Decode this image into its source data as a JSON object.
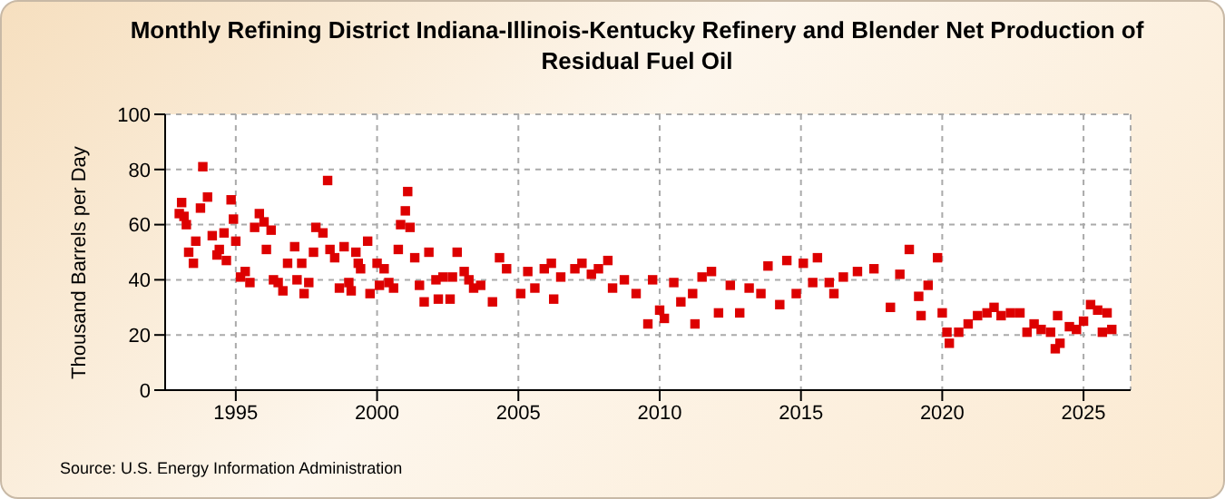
{
  "chart_data": {
    "type": "scatter",
    "title": "Monthly Refining District Indiana-Illinois-Kentucky Refinery and Blender Net Production of Residual Fuel Oil",
    "ylabel": "Thousand Barrels per Day",
    "annotations": [
      "Source: U.S. Energy Information Administration"
    ],
    "x": [
      "1993-01",
      "1993-02",
      "1993-03",
      "1993-04",
      "1993-05",
      "1993-07",
      "1993-08",
      "1993-10",
      "1993-11",
      "1994-01",
      "1994-03",
      "1994-05",
      "1994-06",
      "1994-08",
      "1994-09",
      "1994-11",
      "1994-12",
      "1995-01",
      "1995-03",
      "1995-05",
      "1995-07",
      "1995-09",
      "1995-11",
      "1996-01",
      "1996-02",
      "1996-04",
      "1996-05",
      "1996-07",
      "1996-09",
      "1996-11",
      "1997-02",
      "1997-03",
      "1997-05",
      "1997-06",
      "1997-08",
      "1997-10",
      "1997-11",
      "1998-02",
      "1998-04",
      "1998-05",
      "1998-07",
      "1998-09",
      "1998-11",
      "1999-01",
      "1999-02",
      "1999-04",
      "1999-05",
      "1999-06",
      "1999-09",
      "1999-10",
      "2000-01",
      "2000-02",
      "2000-04",
      "2000-06",
      "2000-08",
      "2000-10",
      "2000-11",
      "2001-01",
      "2001-02",
      "2001-03",
      "2001-05",
      "2001-07",
      "2001-09",
      "2001-11",
      "2002-02",
      "2002-03",
      "2002-05",
      "2002-08",
      "2002-09",
      "2002-11",
      "2003-02",
      "2003-04",
      "2003-06",
      "2003-09",
      "2004-02",
      "2004-05",
      "2004-08",
      "2005-02",
      "2005-05",
      "2005-08",
      "2005-12",
      "2006-03",
      "2006-04",
      "2006-07",
      "2007-01",
      "2007-04",
      "2007-08",
      "2007-11",
      "2008-03",
      "2008-05",
      "2008-10",
      "2009-03",
      "2009-08",
      "2009-10",
      "2010-01",
      "2010-03",
      "2010-07",
      "2010-10",
      "2011-03",
      "2011-04",
      "2011-07",
      "2011-11",
      "2012-02",
      "2012-07",
      "2012-11",
      "2013-03",
      "2013-08",
      "2013-11",
      "2014-04",
      "2014-07",
      "2014-11",
      "2015-02",
      "2015-06",
      "2015-08",
      "2016-01",
      "2016-03",
      "2016-07",
      "2017-01",
      "2017-08",
      "2018-03",
      "2018-07",
      "2018-11",
      "2019-03",
      "2019-04",
      "2019-07",
      "2019-11",
      "2020-01",
      "2020-03",
      "2020-04",
      "2020-08",
      "2020-12",
      "2021-04",
      "2021-08",
      "2021-11",
      "2022-02",
      "2022-06",
      "2022-10",
      "2023-01",
      "2023-04",
      "2023-07",
      "2023-11",
      "2024-01",
      "2024-02",
      "2024-03",
      "2024-07",
      "2024-10",
      "2025-01",
      "2025-04",
      "2025-07",
      "2025-09",
      "2025-11",
      "2026-01"
    ],
    "series": [
      {
        "color": "#dd0000",
        "values": [
          64,
          68,
          63,
          60,
          50,
          46,
          54,
          66,
          81,
          70,
          56,
          49,
          51,
          57,
          47,
          69,
          62,
          54,
          41,
          43,
          39,
          59,
          64,
          61,
          51,
          58,
          40,
          39,
          36,
          46,
          52,
          40,
          46,
          35,
          39,
          50,
          59,
          57,
          76,
          51,
          48,
          37,
          52,
          39,
          36,
          50,
          46,
          44,
          54,
          35,
          46,
          38,
          44,
          39,
          37,
          51,
          60,
          65,
          72,
          59,
          48,
          38,
          32,
          50,
          40,
          33,
          41,
          33,
          41,
          50,
          43,
          40,
          37,
          38,
          32,
          48,
          44,
          35,
          43,
          37,
          44,
          46,
          33,
          41,
          44,
          46,
          42,
          44,
          47,
          37,
          40,
          35,
          24,
          40,
          29,
          26,
          39,
          32,
          35,
          24,
          41,
          43,
          28,
          38,
          28,
          37,
          35,
          45,
          31,
          47,
          35,
          46,
          39,
          48,
          39,
          35,
          41,
          43,
          44,
          30,
          42,
          51,
          34,
          27,
          38,
          48,
          28,
          21,
          17,
          21,
          24,
          27,
          28,
          30,
          27,
          28,
          28,
          21,
          24,
          22,
          21,
          15,
          27,
          17,
          23,
          22,
          25,
          31,
          29,
          21,
          28,
          22
        ]
      }
    ],
    "xlim": [
      "1992-07",
      "2026-09"
    ],
    "xticks": [
      "1995",
      "2000",
      "2005",
      "2010",
      "2015",
      "2020",
      "2025"
    ],
    "ylim": [
      0,
      100
    ],
    "yticks": [
      0,
      20,
      40,
      60,
      80,
      100
    ],
    "grid": true,
    "marker": "square"
  }
}
